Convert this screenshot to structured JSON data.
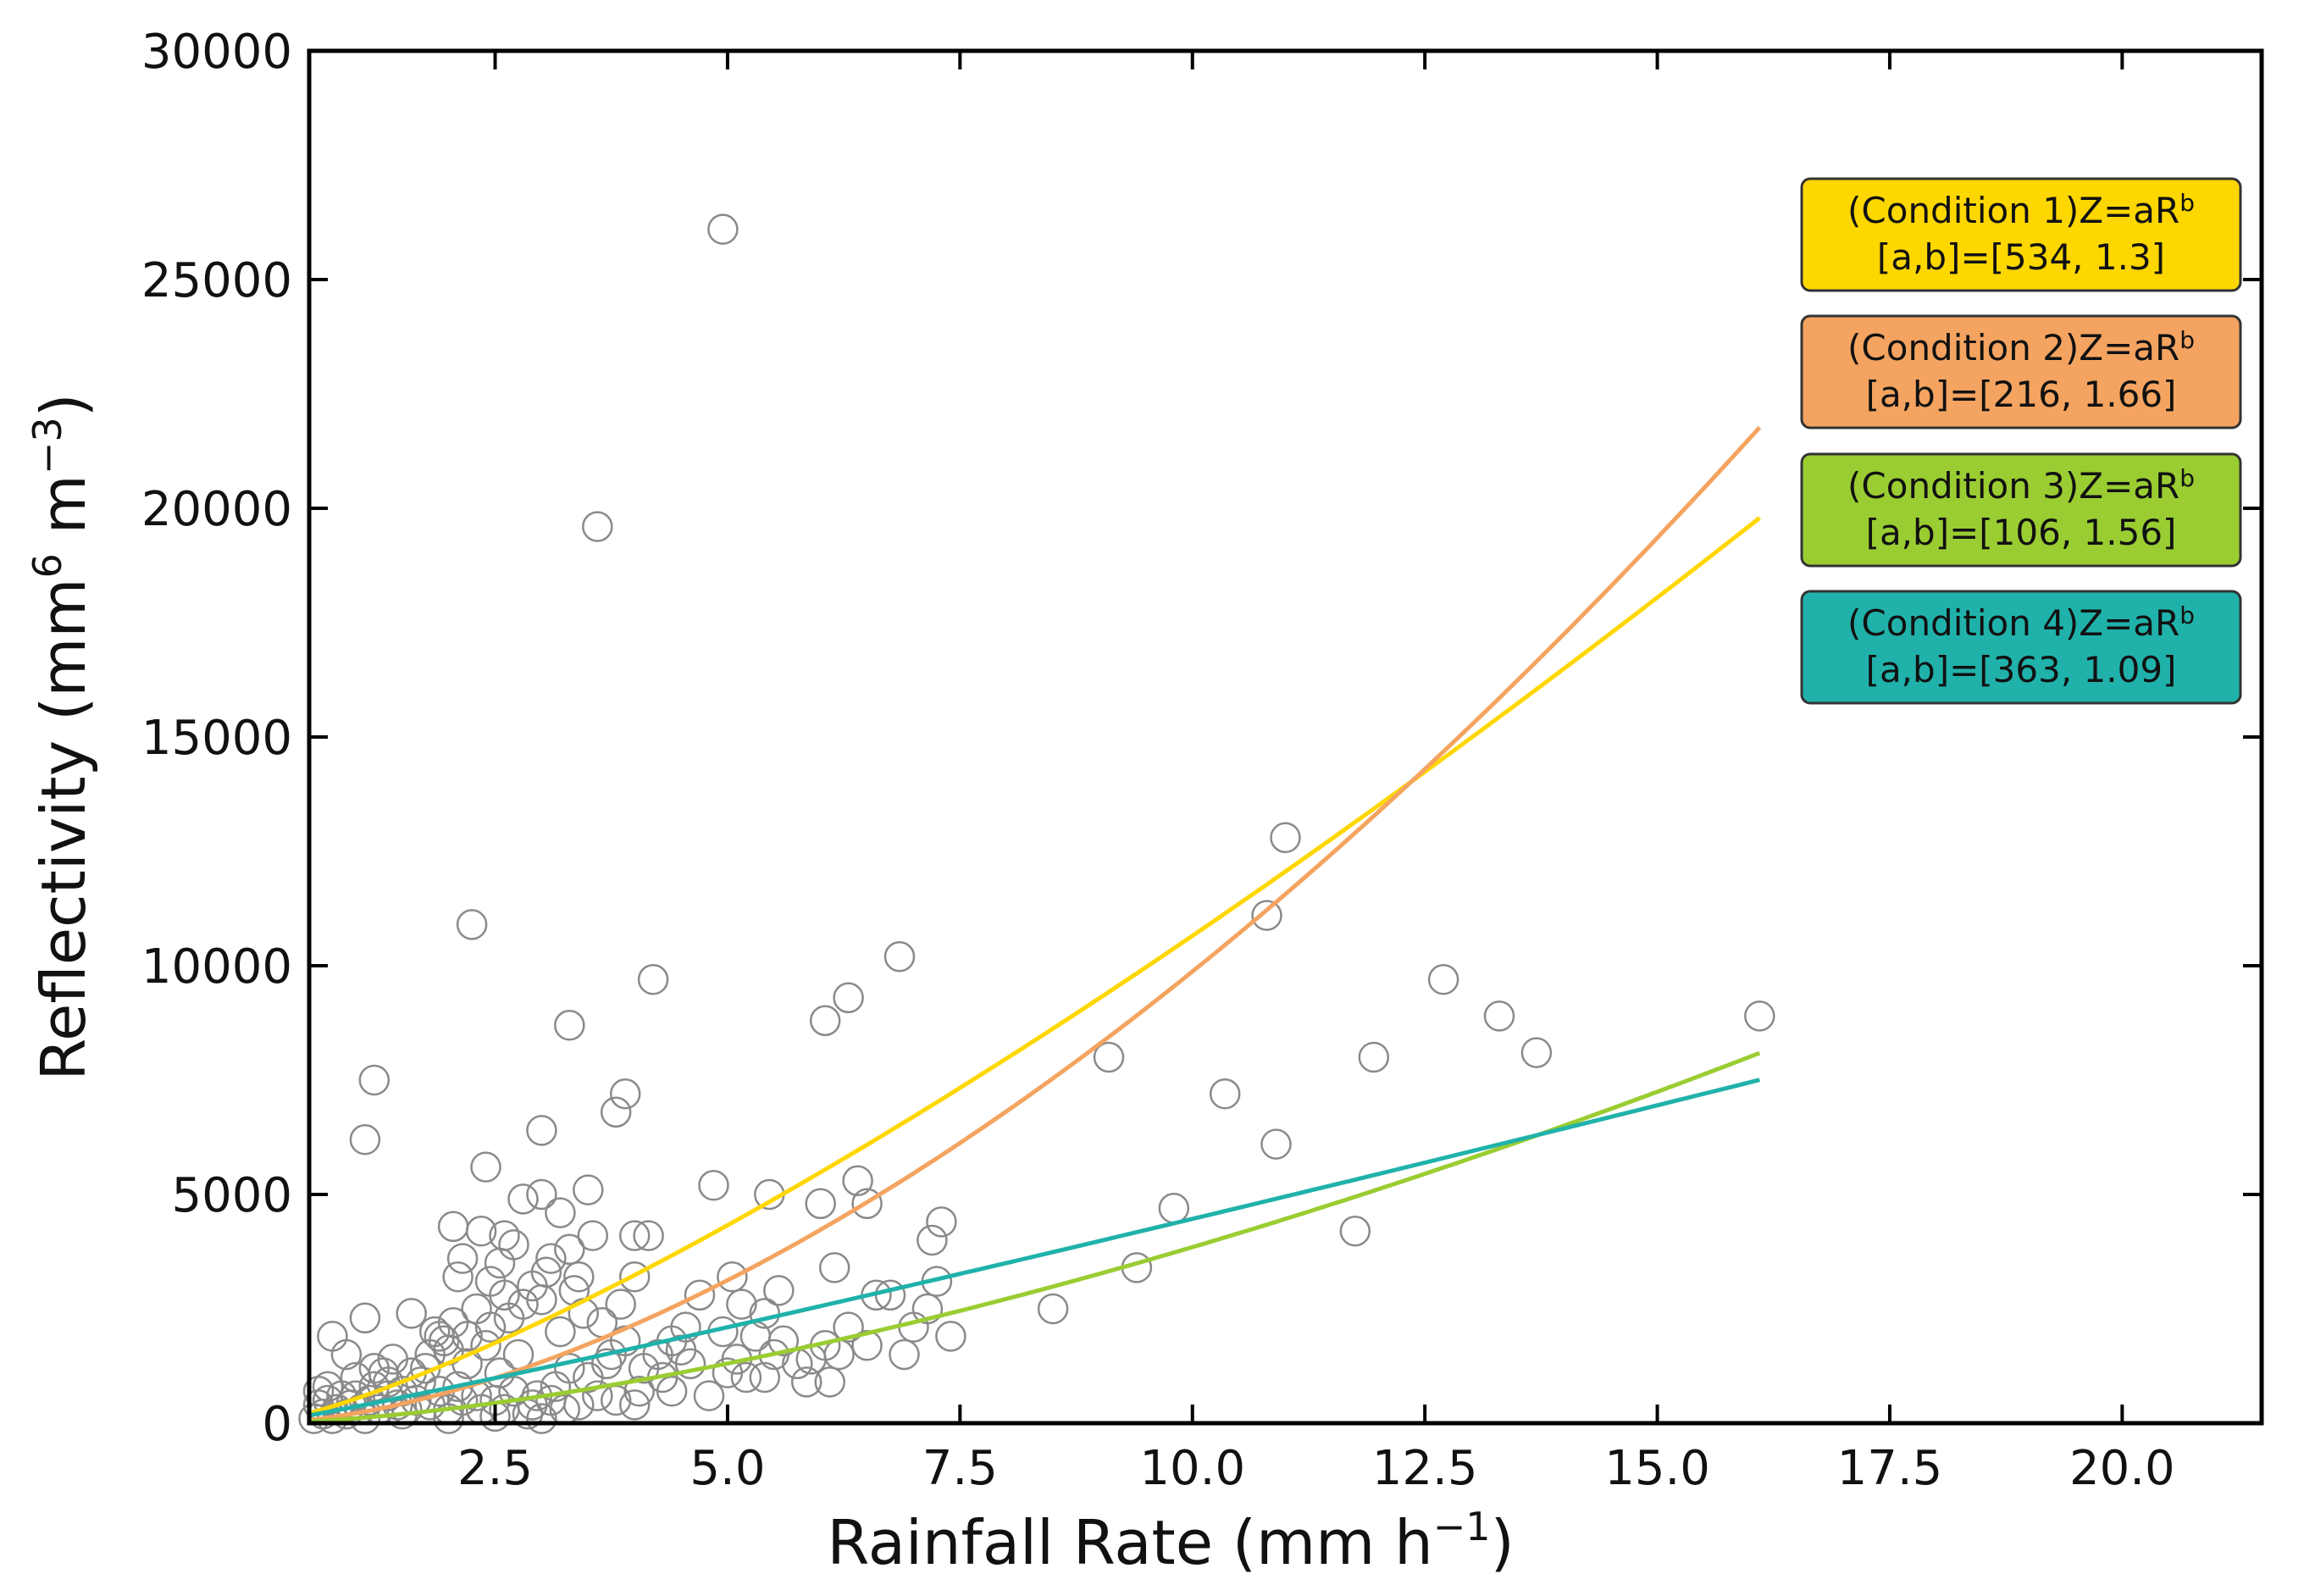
{
  "chart_data": {
    "type": "scatter",
    "xlabel_main": "Rainfall Rate (mm h",
    "xlabel_sup": "−1",
    "xlabel_end": ")",
    "ylabel_main": "Reflectivity (mm",
    "ylabel_sup1": "6",
    "ylabel_mid": " m",
    "ylabel_sup2": "−3",
    "ylabel_end": ")",
    "xlim": [
      0.5,
      21.5
    ],
    "ylim": [
      0,
      30000
    ],
    "xticks": [
      2.5,
      5.0,
      7.5,
      10.0,
      12.5,
      15.0,
      17.5,
      20.0
    ],
    "xtick_labels": [
      "2.5",
      "5.0",
      "7.5",
      "10.0",
      "12.5",
      "15.0",
      "17.5",
      "20.0"
    ],
    "yticks": [
      0,
      5000,
      10000,
      15000,
      20000,
      25000,
      30000
    ],
    "ytick_labels": [
      "0",
      "5000",
      "10000",
      "15000",
      "20000",
      "25000",
      "30000"
    ],
    "legend_position": "upper-right",
    "fits": [
      {
        "name": "Condition 1",
        "formula": "(Condition 1)Z=aR",
        "sup": "b",
        "params": "[a,b]=[534, 1.3]",
        "a": 534,
        "b": 1.3,
        "color": "#FFD700",
        "x_range": [
          0.5,
          16.1
        ]
      },
      {
        "name": "Condition 2",
        "formula": "(Condition 2)Z=aR",
        "sup": "b",
        "params": "[a,b]=[216, 1.66]",
        "a": 216,
        "b": 1.66,
        "color": "#F4A460",
        "x_range": [
          0.5,
          16.1
        ]
      },
      {
        "name": "Condition 3",
        "formula": "(Condition 3)Z=aR",
        "sup": "b",
        "params": "[a,b]=[106, 1.56]",
        "a": 106,
        "b": 1.56,
        "color": "#9ACD32",
        "x_range": [
          0.5,
          16.1
        ]
      },
      {
        "name": "Condition 4",
        "formula": "(Condition 4)Z=aR",
        "sup": "b",
        "params": "[a,b]=[363, 1.09]",
        "a": 363,
        "b": 1.09,
        "color": "#20B2AA",
        "x_range": [
          0.5,
          16.1
        ]
      }
    ],
    "points": [
      [
        4.95,
        26100
      ],
      [
        3.6,
        19600
      ],
      [
        2.25,
        10900
      ],
      [
        11.0,
        12800
      ],
      [
        10.8,
        11100
      ],
      [
        6.85,
        10200
      ],
      [
        4.2,
        9700
      ],
      [
        6.3,
        9300
      ],
      [
        6.05,
        8800
      ],
      [
        3.3,
        8700
      ],
      [
        12.7,
        9700
      ],
      [
        13.3,
        8900
      ],
      [
        13.7,
        8100
      ],
      [
        16.1,
        8900
      ],
      [
        11.95,
        8000
      ],
      [
        9.1,
        8000
      ],
      [
        10.35,
        7200
      ],
      [
        10.9,
        6100
      ],
      [
        1.2,
        7500
      ],
      [
        1.1,
        6200
      ],
      [
        3.9,
        7200
      ],
      [
        3.8,
        6800
      ],
      [
        3.0,
        6400
      ],
      [
        2.4,
        5600
      ],
      [
        4.85,
        5200
      ],
      [
        5.45,
        5000
      ],
      [
        6.4,
        5300
      ],
      [
        3.5,
        5100
      ],
      [
        3.0,
        5000
      ],
      [
        2.8,
        4900
      ],
      [
        6.0,
        4800
      ],
      [
        6.5,
        4800
      ],
      [
        9.8,
        4700
      ],
      [
        11.75,
        4200
      ],
      [
        7.3,
        4400
      ],
      [
        7.2,
        4000
      ],
      [
        2.05,
        4300
      ],
      [
        3.2,
        4600
      ],
      [
        4.0,
        4100
      ],
      [
        4.15,
        4100
      ],
      [
        3.55,
        4100
      ],
      [
        2.6,
        4100
      ],
      [
        2.35,
        4200
      ],
      [
        2.7,
        3900
      ],
      [
        3.3,
        3800
      ],
      [
        6.15,
        3400
      ],
      [
        7.25,
        3100
      ],
      [
        9.4,
        3400
      ],
      [
        8.5,
        2500
      ],
      [
        5.05,
        3200
      ],
      [
        5.55,
        2900
      ],
      [
        6.6,
        2800
      ],
      [
        6.75,
        2800
      ],
      [
        7.15,
        2500
      ],
      [
        7.0,
        2100
      ],
      [
        2.1,
        3200
      ],
      [
        2.3,
        2500
      ],
      [
        2.6,
        2800
      ],
      [
        2.9,
        3000
      ],
      [
        3.05,
        3300
      ],
      [
        3.4,
        3200
      ],
      [
        3.85,
        2600
      ],
      [
        4.0,
        3200
      ],
      [
        4.7,
        2800
      ],
      [
        5.15,
        2600
      ],
      [
        6.9,
        1500
      ],
      [
        7.4,
        1900
      ],
      [
        6.5,
        1700
      ],
      [
        6.05,
        1700
      ],
      [
        6.1,
        900
      ],
      [
        5.85,
        900
      ],
      [
        5.4,
        1000
      ],
      [
        5.2,
        1000
      ],
      [
        5.3,
        1900
      ],
      [
        5.6,
        1800
      ],
      [
        5.0,
        1100
      ],
      [
        4.8,
        600
      ],
      [
        4.6,
        1300
      ],
      [
        4.3,
        1000
      ],
      [
        4.55,
        2100
      ],
      [
        4.5,
        1600
      ],
      [
        3.9,
        1800
      ],
      [
        3.7,
        1300
      ],
      [
        3.5,
        1000
      ],
      [
        3.3,
        1200
      ],
      [
        3.15,
        800
      ],
      [
        2.95,
        600
      ],
      [
        2.75,
        1500
      ],
      [
        2.55,
        1100
      ],
      [
        2.4,
        1700
      ],
      [
        2.2,
        1300
      ],
      [
        2.0,
        1600
      ],
      [
        1.95,
        1800
      ],
      [
        1.85,
        2000
      ],
      [
        1.75,
        1200
      ],
      [
        1.6,
        2400
      ],
      [
        1.4,
        1400
      ],
      [
        1.3,
        1100
      ],
      [
        1.1,
        2300
      ],
      [
        0.9,
        1500
      ],
      [
        0.75,
        1900
      ],
      [
        0.7,
        800
      ],
      [
        0.85,
        600
      ],
      [
        1.0,
        1000
      ],
      [
        1.2,
        800
      ],
      [
        1.5,
        700
      ],
      [
        1.7,
        900
      ],
      [
        1.9,
        700
      ],
      [
        2.1,
        800
      ],
      [
        2.3,
        600
      ],
      [
        2.5,
        500
      ],
      [
        2.7,
        700
      ],
      [
        2.9,
        400
      ],
      [
        3.1,
        500
      ],
      [
        3.4,
        400
      ],
      [
        3.6,
        600
      ],
      [
        3.8,
        500
      ],
      [
        4.05,
        700
      ],
      [
        4.4,
        700
      ],
      [
        0.6,
        400
      ],
      [
        0.65,
        200
      ],
      [
        0.8,
        300
      ],
      [
        0.95,
        400
      ],
      [
        1.05,
        300
      ],
      [
        1.15,
        500
      ],
      [
        1.25,
        300
      ],
      [
        1.35,
        600
      ],
      [
        1.45,
        400
      ],
      [
        1.55,
        300
      ],
      [
        1.65,
        500
      ],
      [
        1.8,
        400
      ],
      [
        2.0,
        300
      ],
      [
        2.15,
        500
      ],
      [
        2.35,
        300
      ],
      [
        2.6,
        300
      ],
      [
        2.85,
        200
      ],
      [
        3.25,
        300
      ],
      [
        0.55,
        100
      ],
      [
        0.7,
        500
      ],
      [
        0.9,
        200
      ],
      [
        1.0,
        600
      ],
      [
        1.2,
        1200
      ],
      [
        1.35,
        900
      ],
      [
        1.6,
        1100
      ],
      [
        1.8,
        1500
      ],
      [
        1.9,
        1900
      ],
      [
        2.05,
        2200
      ],
      [
        2.2,
        1900
      ],
      [
        2.45,
        2100
      ],
      [
        2.65,
        2300
      ],
      [
        2.8,
        2600
      ],
      [
        3.0,
        2700
      ],
      [
        3.2,
        2000
      ],
      [
        3.45,
        2400
      ],
      [
        3.65,
        2200
      ],
      [
        3.75,
        1500
      ],
      [
        4.1,
        1200
      ],
      [
        4.25,
        1500
      ],
      [
        5.1,
        1400
      ],
      [
        5.5,
        1500
      ],
      [
        5.75,
        1300
      ],
      [
        6.2,
        1500
      ],
      [
        0.6,
        700
      ],
      [
        0.75,
        100
      ],
      [
        1.1,
        100
      ],
      [
        1.5,
        200
      ],
      [
        2.0,
        100
      ],
      [
        2.5,
        150
      ],
      [
        3.0,
        100
      ],
      [
        4.0,
        400
      ],
      [
        5.9,
        1400
      ],
      [
        6.3,
        2100
      ],
      [
        5.4,
        2400
      ],
      [
        4.95,
        2000
      ],
      [
        4.4,
        1800
      ],
      [
        2.15,
        3600
      ],
      [
        2.55,
        3500
      ],
      [
        3.1,
        3600
      ],
      [
        3.35,
        2900
      ],
      [
        2.45,
        3100
      ]
    ]
  }
}
